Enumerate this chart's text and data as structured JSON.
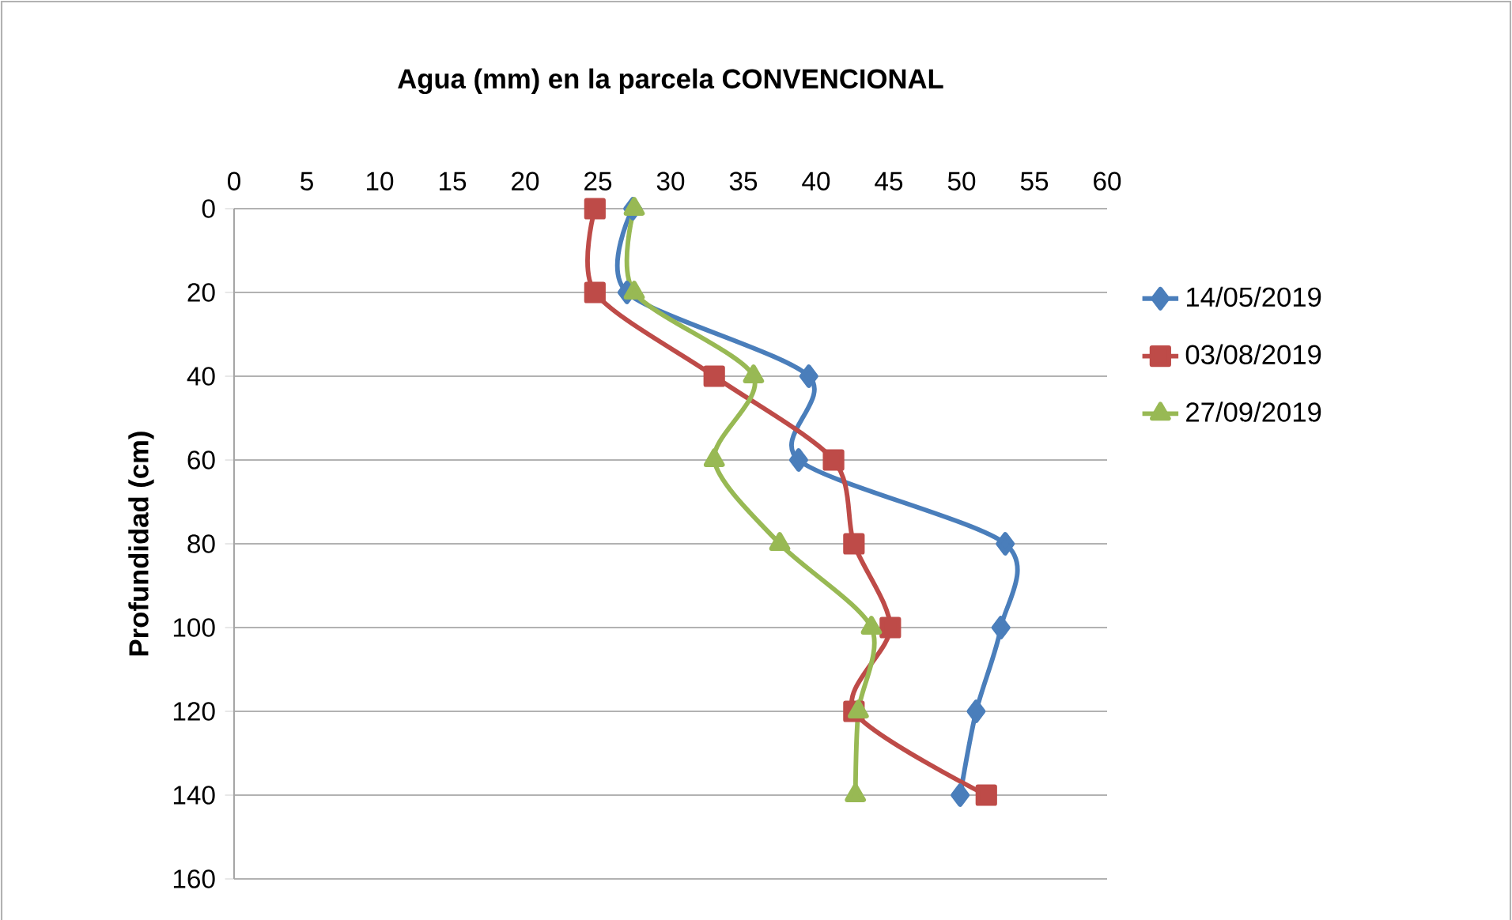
{
  "chart_data": {
    "type": "line",
    "title": "Agua (mm) en la parcela CONVENCIONAL",
    "ylabel": "Profundidad (cm)",
    "xlim": [
      0,
      60
    ],
    "xticks": [
      0,
      5,
      10,
      15,
      20,
      25,
      30,
      35,
      40,
      45,
      50,
      55,
      60
    ],
    "ylim": [
      160,
      0
    ],
    "yticks": [
      0,
      20,
      40,
      60,
      80,
      100,
      120,
      140,
      160
    ],
    "grid": "y",
    "legend": "right",
    "series": [
      {
        "name": "14/05/2019",
        "color": "#4a7ebb",
        "marker": "diamond",
        "x": [
          27.4,
          27.0,
          39.5,
          38.8,
          53,
          52.7,
          51,
          49.9
        ],
        "values": [
          0,
          20,
          40,
          60,
          80,
          100,
          120,
          140
        ]
      },
      {
        "name": "03/08/2019",
        "color": "#be4b48",
        "marker": "square",
        "x": [
          24.8,
          24.8,
          33,
          41.2,
          42.6,
          45.1,
          42.6,
          51.7
        ],
        "values": [
          0,
          20,
          40,
          60,
          80,
          100,
          120,
          140
        ]
      },
      {
        "name": "27/09/2019",
        "color": "#98b954",
        "marker": "triangle",
        "x": [
          27.5,
          27.5,
          35.7,
          33,
          37.5,
          43.8,
          42.9,
          42.7
        ],
        "values": [
          0,
          20,
          40,
          60,
          80,
          100,
          120,
          140
        ]
      }
    ]
  }
}
